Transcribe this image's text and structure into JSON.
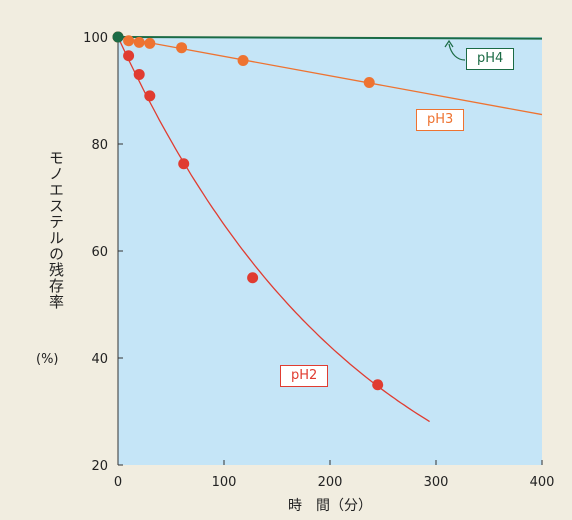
{
  "chart_data": {
    "type": "scatter",
    "xlabel": "時　間（分）",
    "ylabel": "モノエステルの残存率",
    "ylabel_unit": "(%)",
    "xlim": [
      0,
      400
    ],
    "ylim": [
      20,
      100
    ],
    "x_ticks": [
      "0",
      "100",
      "200",
      "300",
      "400"
    ],
    "y_ticks": [
      "20",
      "40",
      "60",
      "80",
      "100"
    ],
    "colors": {
      "background": "#c5e5f7",
      "pH2": "#e03c31",
      "pH3": "#ee7331",
      "pH4": "#1b6b45"
    },
    "series": [
      {
        "name": "pH2",
        "points": [
          [
            0,
            100
          ],
          [
            10,
            96.5
          ],
          [
            20,
            93
          ],
          [
            30,
            89
          ],
          [
            62,
            76.3
          ],
          [
            127,
            55
          ],
          [
            245,
            35
          ]
        ],
        "fit": [
          [
            0,
            100
          ],
          [
            295,
            28
          ]
        ]
      },
      {
        "name": "pH3",
        "points": [
          [
            0,
            100
          ],
          [
            10,
            99.3
          ],
          [
            20,
            99
          ],
          [
            30,
            98.8
          ],
          [
            60,
            98
          ],
          [
            118,
            95.6
          ],
          [
            237,
            91.5
          ]
        ],
        "fit": [
          [
            0,
            100
          ],
          [
            400,
            85.5
          ]
        ]
      },
      {
        "name": "pH4",
        "points": [
          [
            0,
            100
          ]
        ],
        "fit": [
          [
            0,
            100
          ],
          [
            400,
            99.7
          ]
        ]
      }
    ]
  }
}
